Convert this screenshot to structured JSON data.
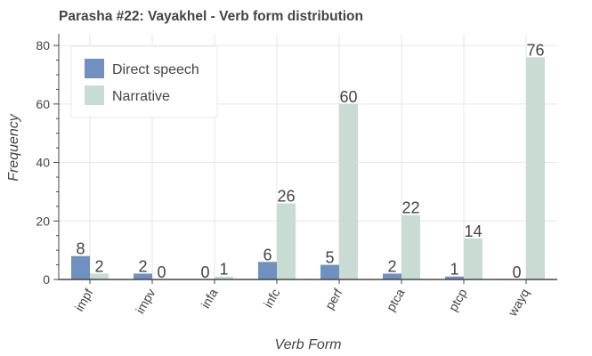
{
  "chart_data": {
    "type": "bar",
    "title": "Parasha #22: Vayakhel - Verb form distribution",
    "xlabel": "Verb Form",
    "ylabel": "Frequency",
    "categories": [
      "impf",
      "impv",
      "infa",
      "infc",
      "perf",
      "ptca",
      "ptcp",
      "wayq"
    ],
    "series": [
      {
        "name": "Direct speech",
        "color": "#7090c0",
        "values": [
          8,
          2,
          0,
          6,
          5,
          2,
          1,
          0
        ]
      },
      {
        "name": "Narrative",
        "color": "#c8dcd4",
        "values": [
          2,
          0,
          1,
          26,
          60,
          22,
          14,
          76
        ]
      }
    ],
    "ylim": [
      0,
      84
    ],
    "yticks": [
      0,
      20,
      40,
      60,
      80
    ],
    "grid": true,
    "legend_position": "top-left"
  }
}
